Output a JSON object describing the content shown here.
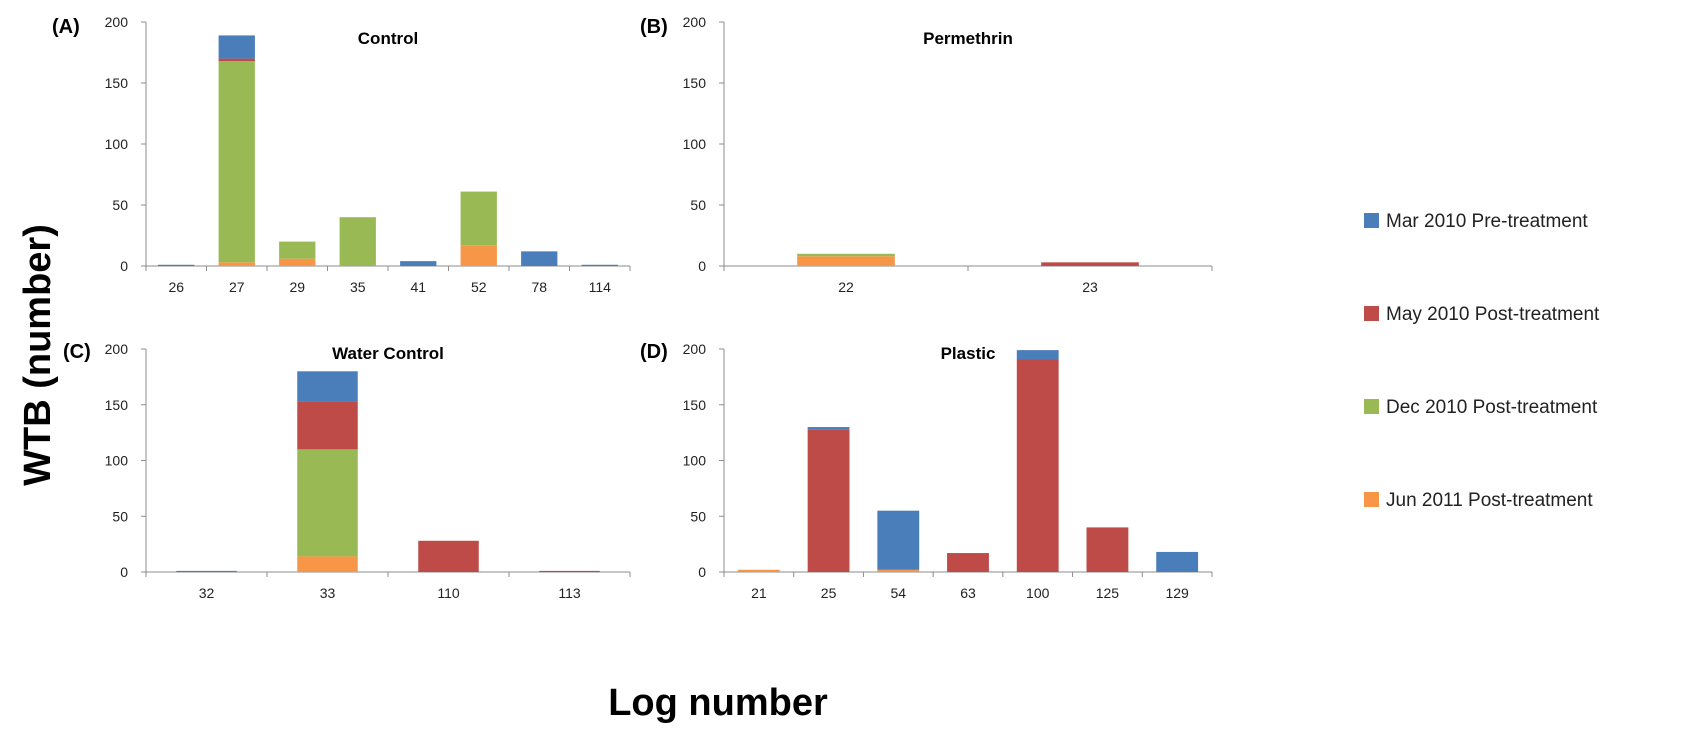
{
  "figure": {
    "ylabel": "WTB (number)",
    "xlabel": "Log number"
  },
  "legend": [
    {
      "label": "Mar 2010 Pre-treatment",
      "color": "#4a7ebb"
    },
    {
      "label": "May 2010 Post-treatment",
      "color": "#be4b48"
    },
    {
      "label": "Dec 2010 Post-treatment",
      "color": "#98b954"
    },
    {
      "label": "Jun 2011 Post-treatment",
      "color": "#f79646"
    }
  ],
  "chart_data": [
    {
      "type": "bar",
      "stacked": true,
      "panel": "(A)",
      "title": "Control",
      "ylim": [
        0,
        200
      ],
      "yticks": [
        0,
        50,
        100,
        150,
        200
      ],
      "categories": [
        "26",
        "27",
        "29",
        "35",
        "41",
        "52",
        "78",
        "114"
      ],
      "series": [
        {
          "name": "Jun 2011 Post-treatment",
          "values": [
            0,
            3,
            6,
            0,
            0,
            17,
            0,
            0
          ]
        },
        {
          "name": "Dec 2010 Post-treatment",
          "values": [
            0,
            165,
            14,
            40,
            0,
            44,
            0,
            0
          ]
        },
        {
          "name": "May 2010 Post-treatment",
          "values": [
            0,
            2,
            0,
            0,
            0,
            0,
            0,
            0
          ]
        },
        {
          "name": "Mar 2010 Pre-treatment",
          "values": [
            1,
            19,
            0,
            0,
            4,
            0,
            12,
            1
          ]
        }
      ]
    },
    {
      "type": "bar",
      "stacked": true,
      "panel": "(B)",
      "title": "Permethrin",
      "ylim": [
        0,
        200
      ],
      "yticks": [
        0,
        50,
        100,
        150,
        200
      ],
      "categories": [
        "22",
        "23"
      ],
      "series": [
        {
          "name": "Jun 2011 Post-treatment",
          "values": [
            8,
            0
          ]
        },
        {
          "name": "Dec 2010 Post-treatment",
          "values": [
            2,
            0
          ]
        },
        {
          "name": "May 2010 Post-treatment",
          "values": [
            0,
            3
          ]
        },
        {
          "name": "Mar 2010 Pre-treatment",
          "values": [
            0,
            0
          ]
        }
      ]
    },
    {
      "type": "bar",
      "stacked": true,
      "panel": "(C)",
      "title": "Water Control",
      "ylim": [
        0,
        200
      ],
      "yticks": [
        0,
        50,
        100,
        150,
        200
      ],
      "categories": [
        "32",
        "33",
        "110",
        "113"
      ],
      "series": [
        {
          "name": "Jun 2011 Post-treatment",
          "values": [
            0,
            14,
            0,
            0
          ]
        },
        {
          "name": "Dec 2010 Post-treatment",
          "values": [
            0,
            96,
            0,
            0
          ]
        },
        {
          "name": "May 2010 Post-treatment",
          "values": [
            0,
            43,
            28,
            1
          ]
        },
        {
          "name": "Mar 2010 Pre-treatment",
          "values": [
            1,
            27,
            0,
            0
          ]
        }
      ]
    },
    {
      "type": "bar",
      "stacked": true,
      "panel": "(D)",
      "title": "Plastic",
      "ylim": [
        0,
        200
      ],
      "yticks": [
        0,
        50,
        100,
        150,
        200
      ],
      "categories": [
        "21",
        "25",
        "54",
        "63",
        "100",
        "125",
        "129"
      ],
      "series": [
        {
          "name": "Jun 2011 Post-treatment",
          "values": [
            2,
            0,
            2,
            0,
            0,
            0,
            0
          ]
        },
        {
          "name": "Dec 2010 Post-treatment",
          "values": [
            0,
            0,
            0,
            0,
            0,
            0,
            0
          ]
        },
        {
          "name": "May 2010 Post-treatment",
          "values": [
            0,
            128,
            0,
            17,
            191,
            40,
            0
          ]
        },
        {
          "name": "Mar 2010 Pre-treatment",
          "values": [
            0,
            2,
            53,
            0,
            8,
            0,
            18
          ]
        }
      ]
    }
  ]
}
